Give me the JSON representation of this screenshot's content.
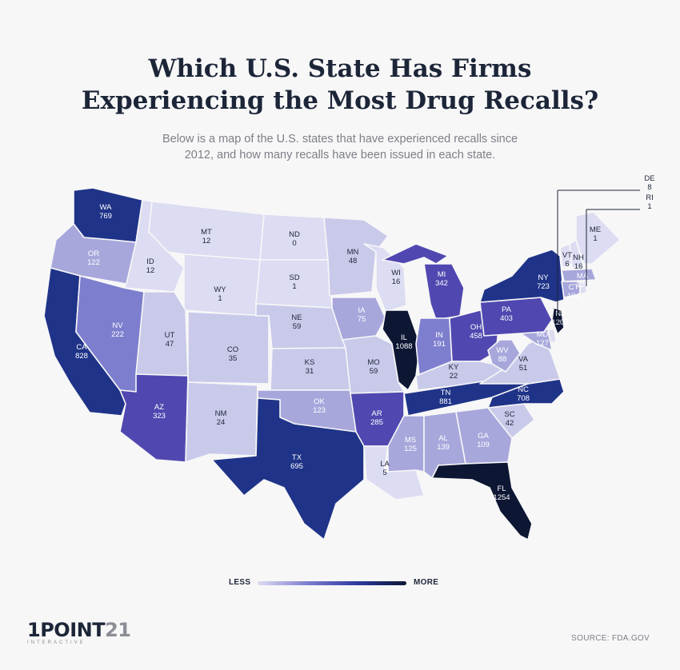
{
  "title": {
    "line1": "Which U.S. State Has Firms",
    "line2": "Experiencing the Most Drug Recalls?"
  },
  "subtitle": {
    "line1": "Below is a map of the U.S. states that have experienced recalls since",
    "line2": "2012, and how many recalls have been issued in each state."
  },
  "legend": {
    "less": "LESS",
    "more": "MORE"
  },
  "logo": {
    "name_a": "1POINT",
    "name_b": "21",
    "sub": "INTERACTIVE"
  },
  "source": "SOURCE: FDA.GOV",
  "colors": {
    "lightest": "#dcdcf2",
    "light": "#c9c9ea",
    "mid_light": "#a7a7dc",
    "mid": "#7e7ecf",
    "mid_dark": "#5048b0",
    "dark": "#1f3388",
    "darkest": "#0d1633",
    "background": "#f7f7f8",
    "title": "#1d2638"
  },
  "states": [
    {
      "abbr": "WA",
      "value": "769"
    },
    {
      "abbr": "OR",
      "value": "122"
    },
    {
      "abbr": "CA",
      "value": "828"
    },
    {
      "abbr": "ID",
      "value": "12"
    },
    {
      "abbr": "NV",
      "value": "222"
    },
    {
      "abbr": "MT",
      "value": "12"
    },
    {
      "abbr": "WY",
      "value": "1"
    },
    {
      "abbr": "UT",
      "value": "47"
    },
    {
      "abbr": "AZ",
      "value": "323"
    },
    {
      "abbr": "CO",
      "value": "35"
    },
    {
      "abbr": "NM",
      "value": "24"
    },
    {
      "abbr": "ND",
      "value": "0"
    },
    {
      "abbr": "SD",
      "value": "1"
    },
    {
      "abbr": "NE",
      "value": "59"
    },
    {
      "abbr": "KS",
      "value": "31"
    },
    {
      "abbr": "OK",
      "value": "123"
    },
    {
      "abbr": "TX",
      "value": "695"
    },
    {
      "abbr": "MN",
      "value": "48"
    },
    {
      "abbr": "IA",
      "value": "75"
    },
    {
      "abbr": "MO",
      "value": "59"
    },
    {
      "abbr": "AR",
      "value": "285"
    },
    {
      "abbr": "LA",
      "value": "5"
    },
    {
      "abbr": "WI",
      "value": "16"
    },
    {
      "abbr": "IL",
      "value": "1088"
    },
    {
      "abbr": "MI",
      "value": "342"
    },
    {
      "abbr": "IN",
      "value": "191"
    },
    {
      "abbr": "OH",
      "value": "458"
    },
    {
      "abbr": "KY",
      "value": "22"
    },
    {
      "abbr": "TN",
      "value": "881"
    },
    {
      "abbr": "MS",
      "value": "125"
    },
    {
      "abbr": "AL",
      "value": "139"
    },
    {
      "abbr": "GA",
      "value": "109"
    },
    {
      "abbr": "FL",
      "value": "1254"
    },
    {
      "abbr": "SC",
      "value": "42"
    },
    {
      "abbr": "NC",
      "value": "708"
    },
    {
      "abbr": "VA",
      "value": "51"
    },
    {
      "abbr": "WV",
      "value": "88"
    },
    {
      "abbr": "MD",
      "value": "127"
    },
    {
      "abbr": "PA",
      "value": "403"
    },
    {
      "abbr": "NY",
      "value": "723"
    },
    {
      "abbr": "NJ",
      "value": "1207"
    },
    {
      "abbr": "VT",
      "value": "6"
    },
    {
      "abbr": "NH",
      "value": "16"
    },
    {
      "abbr": "MA",
      "value": "120"
    },
    {
      "abbr": "CT",
      "value": "104"
    },
    {
      "abbr": "ME",
      "value": "1"
    },
    {
      "abbr": "DE",
      "value": "8"
    },
    {
      "abbr": "RI",
      "value": "1"
    }
  ]
}
